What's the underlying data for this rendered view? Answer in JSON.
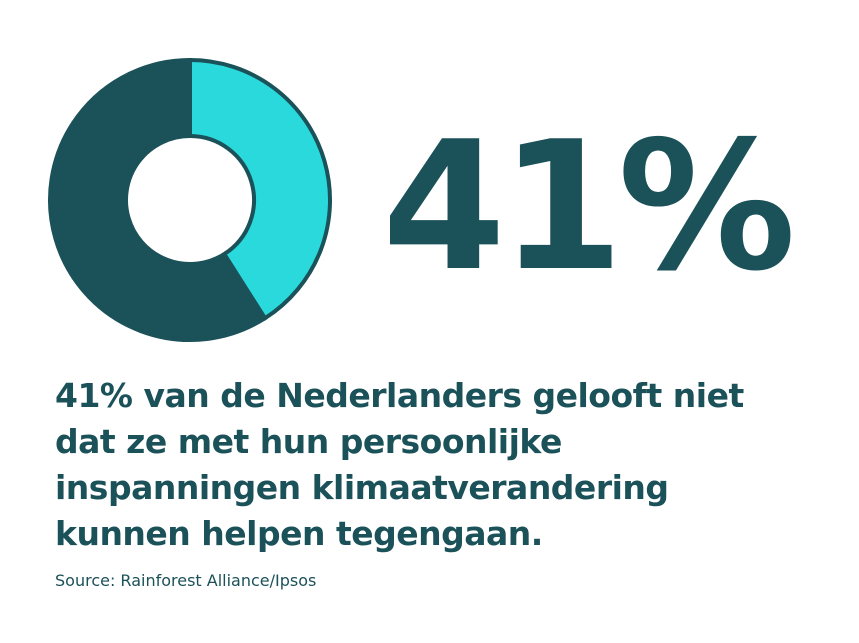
{
  "chart_data": {
    "type": "donut",
    "values": [
      41,
      59
    ],
    "value_labels": [
      "41%",
      null
    ],
    "colors": [
      "#2ad9db",
      "#1b5158"
    ],
    "annotations": [
      "41% van de Nederlanders gelooft niet",
      "dat ze met hun persoonlijke",
      "inspanningen klimaatverandering",
      "kunnen helpen tegengaan."
    ],
    "source": "Source: Rainforest Alliance/Ipsos"
  }
}
